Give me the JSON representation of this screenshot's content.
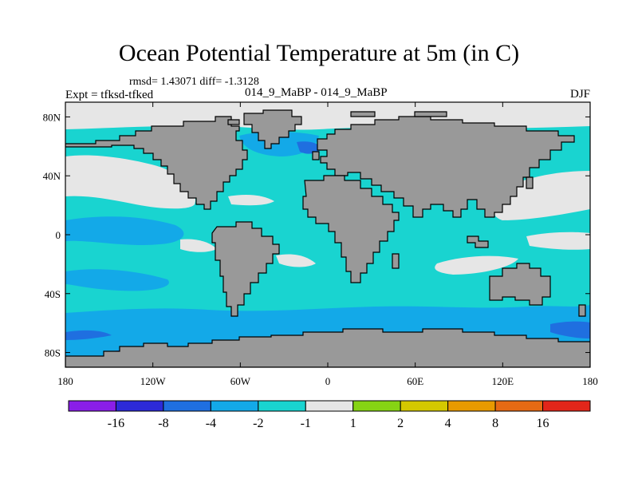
{
  "figure": {
    "title": "Ocean Potential Temperature at 5m (in C)",
    "stats_text": "rmsd= 1.43071  diff= -1.3128",
    "expt_text": "Expt = tfksd-tfked",
    "case_text": "014_9_MaBP - 014_9_MaBP",
    "season": "DJF"
  },
  "map_axes": {
    "lon_range": [
      -180,
      180
    ],
    "lat_range": [
      -90,
      90
    ],
    "x_ticks": [
      {
        "lon": -180,
        "label": "180"
      },
      {
        "lon": -120,
        "label": "120W"
      },
      {
        "lon": -60,
        "label": "60W"
      },
      {
        "lon": 0,
        "label": "0"
      },
      {
        "lon": 60,
        "label": "60E"
      },
      {
        "lon": 120,
        "label": "120E"
      },
      {
        "lon": 180,
        "label": "180"
      }
    ],
    "y_ticks": [
      {
        "lat": 80,
        "label": "80N"
      },
      {
        "lat": 40,
        "label": "40N"
      },
      {
        "lat": 0,
        "label": "0"
      },
      {
        "lat": -40,
        "label": "40S"
      },
      {
        "lat": -80,
        "label": "80S"
      }
    ]
  },
  "colors": {
    "land": "#999999",
    "coast": "#000000",
    "neg16": "#8a1ee8",
    "neg8": "#2c2ad8",
    "neg4": "#1f6fe0",
    "neg2": "#13a9e8",
    "neg1": "#19d4d0",
    "zero": "#e6e6e6",
    "pos1": "#86d414",
    "pos2": "#d4c800",
    "pos4": "#e89a00",
    "pos8": "#e66a14",
    "pos16": "#e2261a"
  },
  "colorbar": {
    "bins": [
      {
        "color": "#8a1ee8"
      },
      {
        "color": "#2c2ad8"
      },
      {
        "color": "#1f6fe0"
      },
      {
        "color": "#13a9e8"
      },
      {
        "color": "#19d4d0"
      },
      {
        "color": "#e6e6e6"
      },
      {
        "color": "#86d414"
      },
      {
        "color": "#d4c800"
      },
      {
        "color": "#e89a00"
      },
      {
        "color": "#e66a14"
      },
      {
        "color": "#e2261a"
      }
    ],
    "labels": [
      "-16",
      "-8",
      "-4",
      "-2",
      "-1",
      "1",
      "2",
      "4",
      "8",
      "16"
    ]
  }
}
